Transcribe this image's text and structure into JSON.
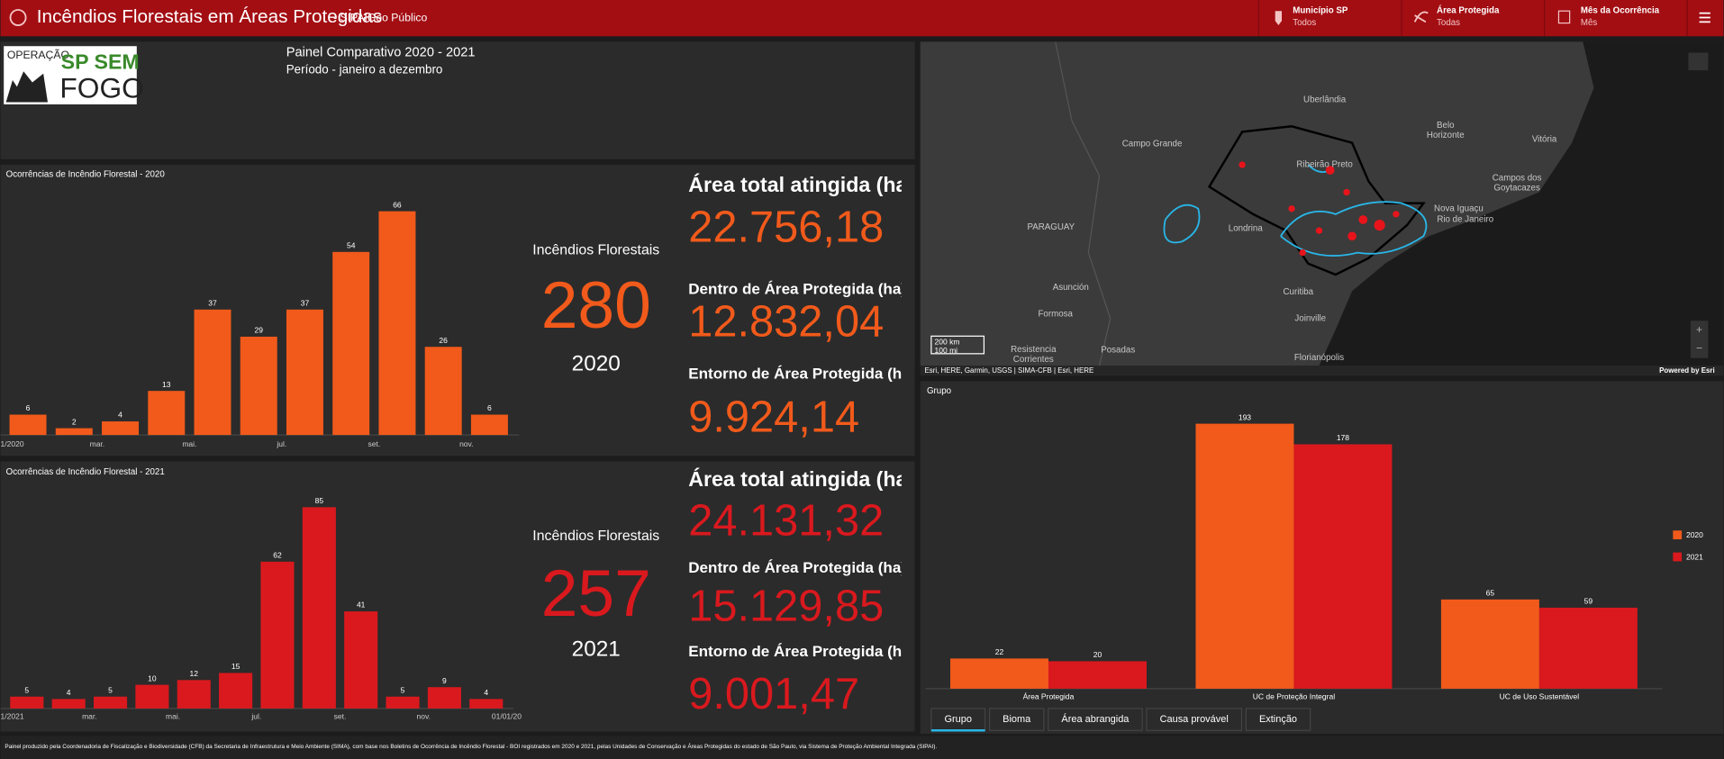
{
  "header": {
    "title": "Incêndios Florestais em Áreas Protegidas",
    "subtitle": "- SIPAIGeo Público",
    "filters": [
      {
        "label": "Município SP",
        "value": "Todos"
      },
      {
        "label": "Área Protegida",
        "value": "Todas"
      },
      {
        "label": "Mês da Ocorrência",
        "value": "Mês"
      }
    ]
  },
  "logo": {
    "line1": "OPERAÇÃO",
    "line2": "SP SEM",
    "line3": "FOGO"
  },
  "intro": {
    "title": "Painel Comparativo 2020 - 2021",
    "period": "Período - janeiro a dezembro"
  },
  "kpis": [
    {
      "label": "Incêndios Florestais",
      "count": "280",
      "year": "2020",
      "total_label": "Área total atingida (ha)",
      "total": "22.756,18",
      "inside_label": "Dentro de Área Protegida (ha)",
      "inside": "12.832,04",
      "around_label": "Entorno de Área Protegida (ha)",
      "around": "9.924,14"
    },
    {
      "label": "Incêndios Florestais",
      "count": "257",
      "year": "2021",
      "total_label": "Área total atingida (ha)",
      "total": "24.131,32",
      "inside_label": "Dentro de Área Protegida (ha)",
      "inside": "15.129,85",
      "around_label": "Entorno de Área Protegida (ha)",
      "around": "9.001,47"
    }
  ],
  "map": {
    "labels": [
      "Uberlândia",
      "Campo Grande",
      "Belo Horizonte",
      "Vitória",
      "Ribeirão Preto",
      "Campos dos Goytacazes",
      "PARAGUAY",
      "Londrina",
      "Nova Iguaçu",
      "Rio de Janeiro",
      "Asunción",
      "Curitiba",
      "Formosa",
      "Joinville",
      "Resistencia Corrientes",
      "Posadas",
      "Florianópolis"
    ],
    "scale": [
      "200 km",
      "100 mi"
    ],
    "attribution": "Esri, HERE, Garmin, USGS | SIMA-CFB | Esri, HERE",
    "powered": "Powered by Esri"
  },
  "tabs": [
    "Grupo",
    "Bioma",
    "Área abrangida",
    "Causa provável",
    "Extinção"
  ],
  "footer": "Painel produzido pela Coordenadoria de Fiscalização e Biodiversidade (CFB) da Secretaria de Infraestrutura e Meio Ambiente (SIMA), com base nos Boletins de Ocorrência de Incêndio Florestal - BOI registrados em 2020 e 2021, pelas Unidades de Conservação e Áreas Protegidas do estado de São Paulo, via Sistema de Proteção Ambiental Integrada (SIPAI).",
  "chart_data": [
    {
      "type": "bar",
      "title": "Ocorrências de Incêndio Florestal - 2020",
      "categories": [
        "1/2020",
        null,
        "mar.",
        null,
        "mai.",
        null,
        "jul.",
        null,
        "set.",
        null,
        "nov."
      ],
      "values": [
        6,
        2,
        4,
        13,
        37,
        29,
        37,
        54,
        66,
        26,
        6
      ],
      "color": "#f15a1b",
      "ylim": [
        0,
        70
      ]
    },
    {
      "type": "bar",
      "title": "Ocorrências de Incêndio Florestal - 2021",
      "categories": [
        "1/2021",
        null,
        "mar.",
        null,
        "mai.",
        null,
        "jul.",
        null,
        "set.",
        null,
        "nov.",
        null
      ],
      "x_end_label": "01/01/20",
      "values": [
        5,
        4,
        5,
        10,
        12,
        15,
        62,
        85,
        41,
        5,
        9,
        4
      ],
      "color": "#d9191e",
      "ylim": [
        0,
        90
      ]
    },
    {
      "type": "grouped_bar",
      "title": "Grupo",
      "categories": [
        "Área Protegida",
        "UC de Proteção Integral",
        "UC de Uso Sustentável"
      ],
      "series": [
        {
          "name": "2020",
          "color": "#f15a1b",
          "values": [
            22,
            193,
            65
          ]
        },
        {
          "name": "2021",
          "color": "#d9191e",
          "values": [
            20,
            178,
            59
          ]
        }
      ],
      "ylim": [
        0,
        200
      ],
      "legend": "right"
    }
  ]
}
